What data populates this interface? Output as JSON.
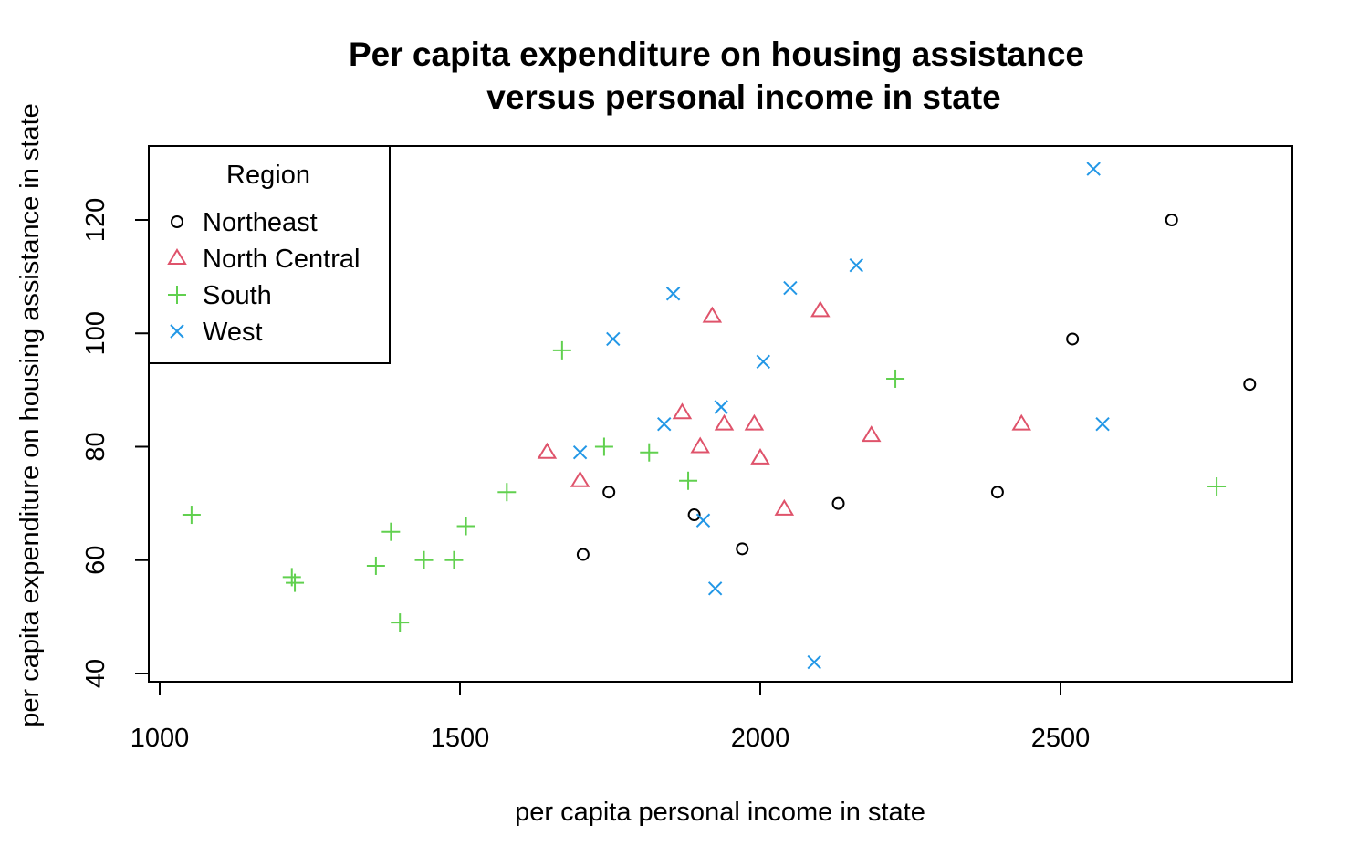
{
  "chart_data": {
    "type": "scatter",
    "title": "Per capita expenditure on housing assistance",
    "subtitle": "versus personal income in state",
    "xlabel": "per capita personal income in state",
    "ylabel": "per capita expenditure on housing assistance in state",
    "xlim": [
      1000,
      2800
    ],
    "ylim": [
      40,
      130
    ],
    "xticks": [
      "1000",
      "1500",
      "2000",
      "2500"
    ],
    "yticks": [
      "40",
      "60",
      "80",
      "100",
      "120"
    ],
    "legend": {
      "title": "Region",
      "placement": "top-left"
    },
    "series": [
      {
        "name": "Northeast",
        "color": "#000000",
        "marker": "circle",
        "points": [
          [
            1705,
            61
          ],
          [
            1748,
            72
          ],
          [
            1890,
            68
          ],
          [
            1970,
            62
          ],
          [
            2130,
            70
          ],
          [
            2395,
            72
          ],
          [
            2520,
            99
          ],
          [
            2685,
            120
          ],
          [
            2815,
            91
          ]
        ]
      },
      {
        "name": "North Central",
        "color": "#DF536B",
        "marker": "triangle",
        "points": [
          [
            1645,
            79
          ],
          [
            1700,
            74
          ],
          [
            1870,
            86
          ],
          [
            1900,
            80
          ],
          [
            1920,
            103
          ],
          [
            1940,
            84
          ],
          [
            1990,
            84
          ],
          [
            2000,
            78
          ],
          [
            2040,
            69
          ],
          [
            2100,
            104
          ],
          [
            2185,
            82
          ],
          [
            2435,
            84
          ]
        ]
      },
      {
        "name": "South",
        "color": "#61D04F",
        "marker": "plus",
        "points": [
          [
            1053,
            68
          ],
          [
            1220,
            57
          ],
          [
            1225,
            56
          ],
          [
            1360,
            59
          ],
          [
            1385,
            65
          ],
          [
            1400,
            49
          ],
          [
            1440,
            60
          ],
          [
            1490,
            60
          ],
          [
            1510,
            66
          ],
          [
            1578,
            72
          ],
          [
            1670,
            97
          ],
          [
            1740,
            80
          ],
          [
            1815,
            79
          ],
          [
            1880,
            74
          ],
          [
            2225,
            92
          ],
          [
            2760,
            73
          ]
        ]
      },
      {
        "name": "West",
        "color": "#2297E6",
        "marker": "x",
        "points": [
          [
            1700,
            79
          ],
          [
            1755,
            99
          ],
          [
            1840,
            84
          ],
          [
            1855,
            107
          ],
          [
            1905,
            67
          ],
          [
            1925,
            55
          ],
          [
            1935,
            87
          ],
          [
            2005,
            95
          ],
          [
            2050,
            108
          ],
          [
            2090,
            42
          ],
          [
            2160,
            112
          ],
          [
            2555,
            129
          ],
          [
            2570,
            84
          ]
        ]
      }
    ]
  }
}
